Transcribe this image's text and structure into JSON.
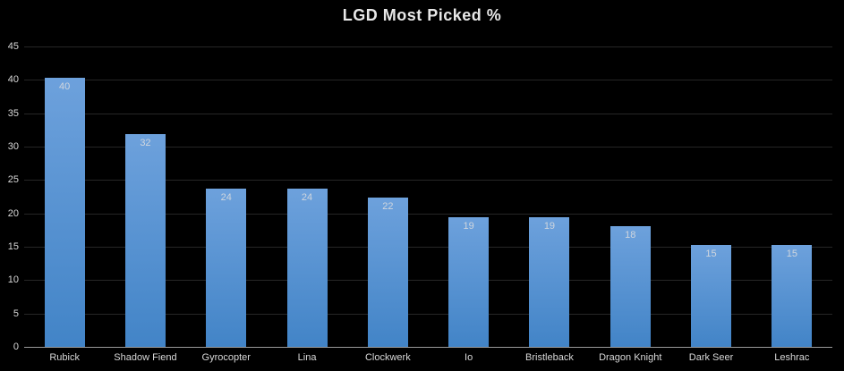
{
  "title": "LGD Most Picked %",
  "colors": {
    "background": "#000000",
    "title": "#e8e8e8",
    "gridline": "#262626",
    "axis_line": "#9a9a9a",
    "tick_label": "#d9d9d9",
    "bar_gradient_top": "#6da1dc",
    "bar_gradient_bottom": "#4284c7",
    "bar_label": "#d0d6de"
  },
  "chart_data": {
    "type": "bar",
    "title": "LGD Most Picked %",
    "categories": [
      "Rubick",
      "Shadow Fiend",
      "Gyrocopter",
      "Lina",
      "Clockwerk",
      "Io",
      "Bristleback",
      "Dragon Knight",
      "Dark Seer",
      "Leshrac"
    ],
    "values": [
      40,
      32,
      24,
      24,
      22,
      19,
      19,
      18,
      15,
      15
    ],
    "precise_values": [
      40.3,
      31.9,
      23.7,
      23.7,
      22.4,
      19.4,
      19.4,
      18.1,
      15.3,
      15.3
    ],
    "data_labels_shown": true,
    "xlabel": "",
    "ylabel": "",
    "y_ticks": [
      45,
      40,
      35,
      30,
      25,
      20,
      15,
      10,
      5,
      0
    ],
    "ylim": [
      0,
      45
    ],
    "grid": true,
    "legend": false,
    "theme": "dark"
  }
}
